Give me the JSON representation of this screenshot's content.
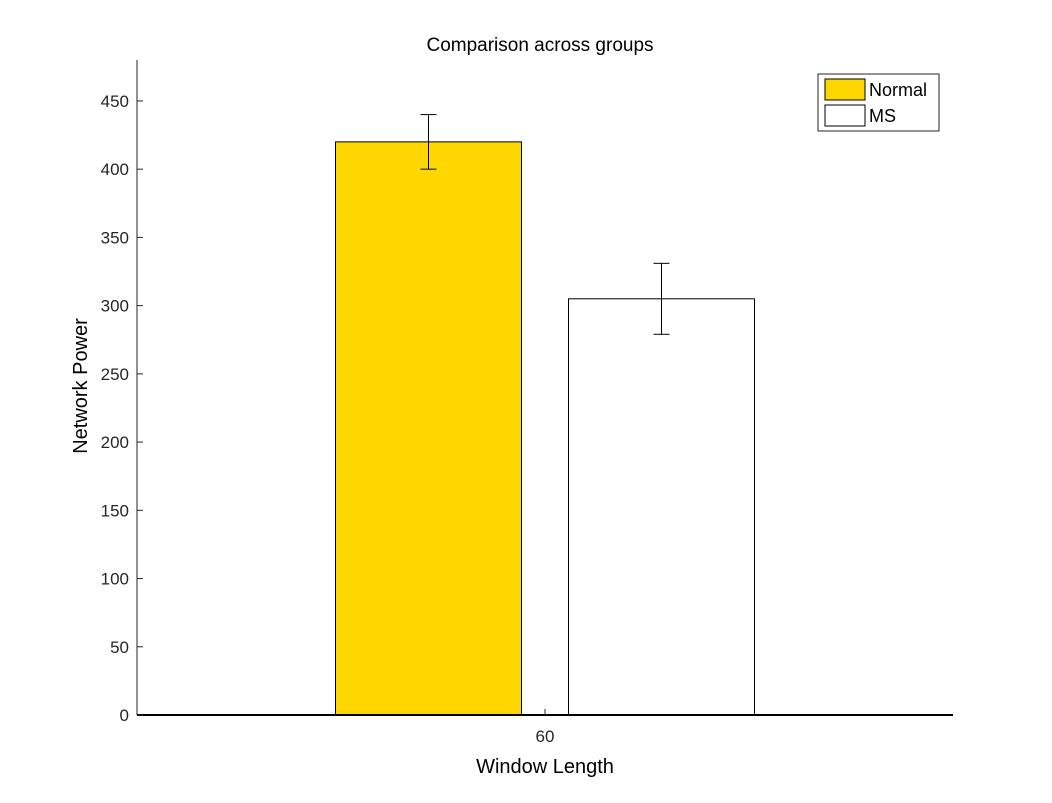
{
  "chart_data": {
    "type": "bar",
    "title": "Comparison across groups",
    "xlabel": "Window Length",
    "ylabel": "Network Power",
    "categories": [
      "60"
    ],
    "ylim": [
      0,
      480
    ],
    "yticks": [
      0,
      50,
      100,
      150,
      200,
      250,
      300,
      350,
      400,
      450
    ],
    "grid": false,
    "legend_position": "top-right",
    "series": [
      {
        "name": "Normal",
        "values": [
          420
        ],
        "error": [
          20
        ],
        "color": "#FFD700"
      },
      {
        "name": "MS",
        "values": [
          305
        ],
        "error": [
          26
        ],
        "color": "#FFFFFF"
      }
    ]
  }
}
